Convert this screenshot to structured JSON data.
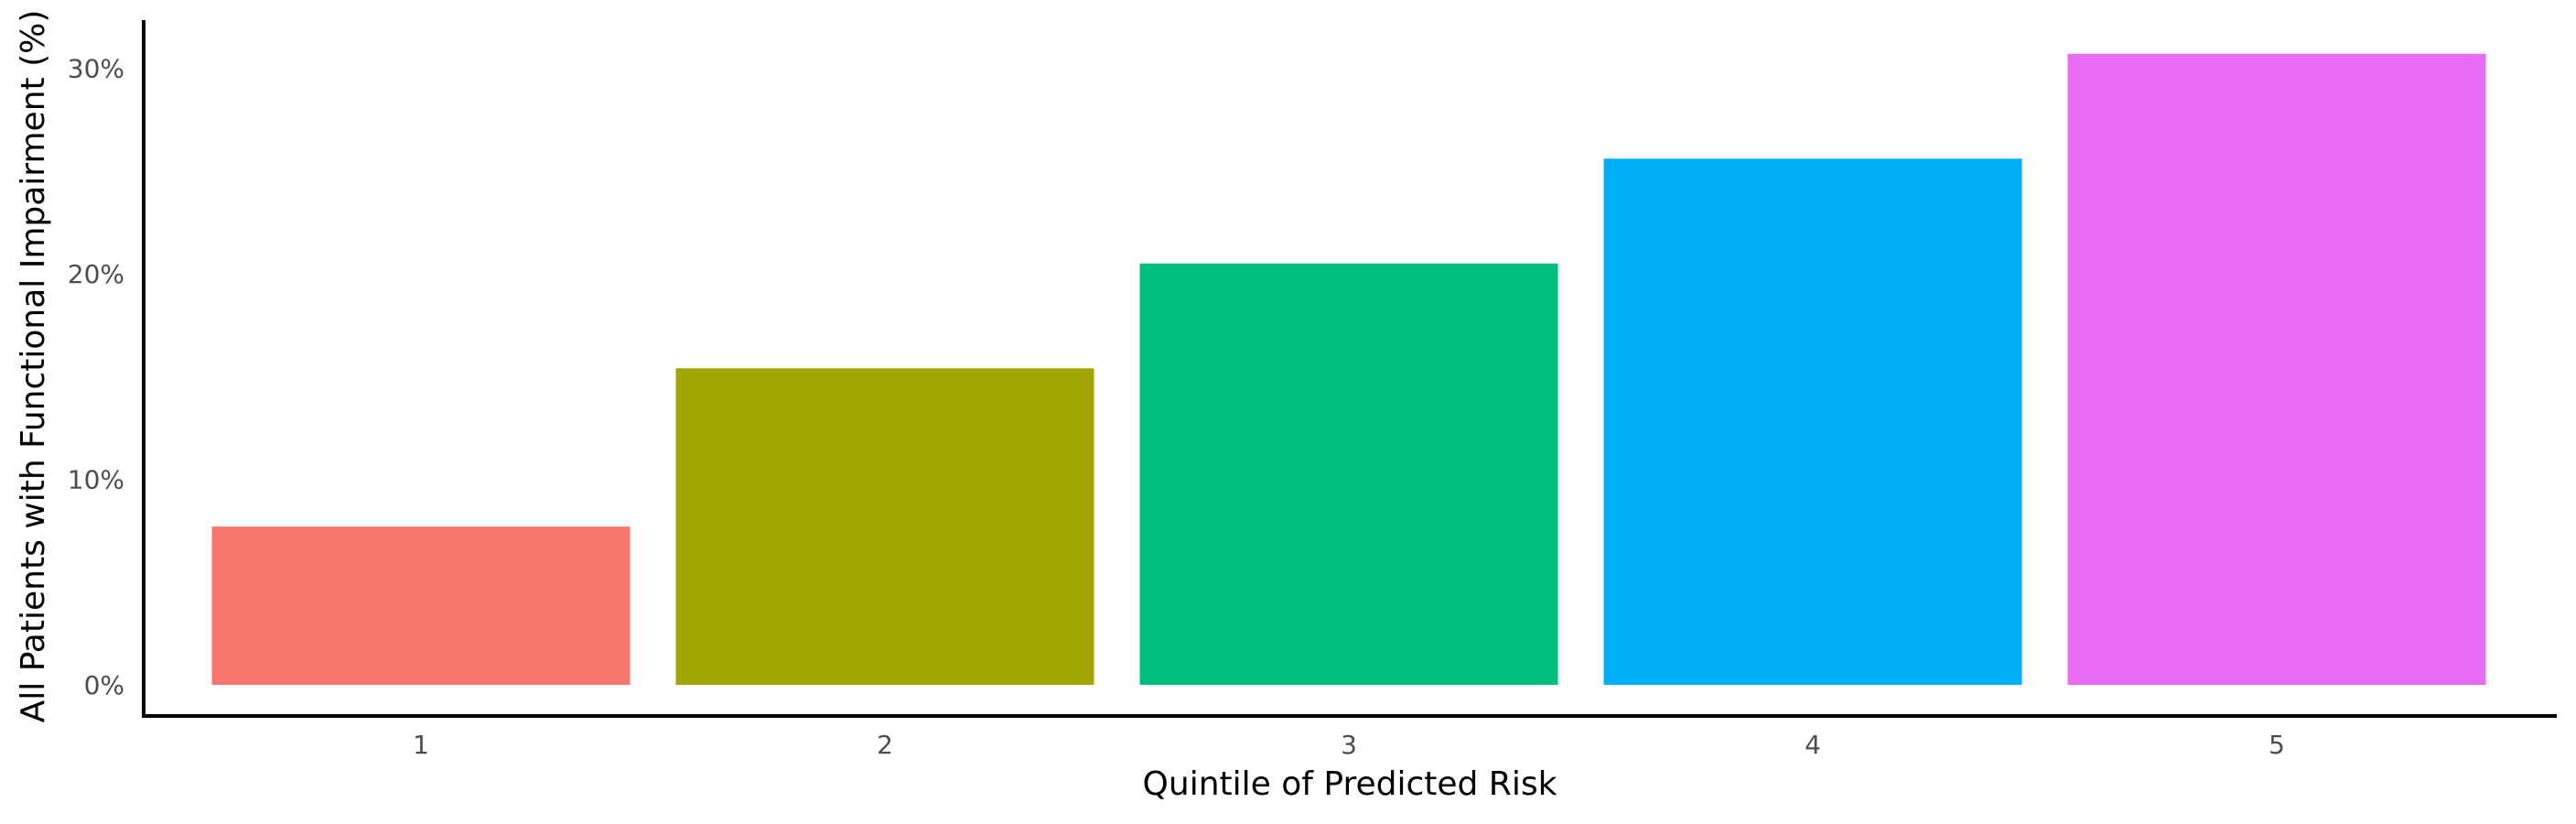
{
  "chart_data": {
    "type": "bar",
    "categories": [
      "1",
      "2",
      "3",
      "4",
      "5"
    ],
    "values": [
      7.7,
      15.4,
      20.5,
      25.6,
      30.7
    ],
    "colors": [
      "#F8766D",
      "#A3A500",
      "#00BF7D",
      "#00B0F6",
      "#E76BF3"
    ],
    "xlabel": "Quintile of Predicted Risk",
    "ylabel": "All Patients with Functional Impairment (%)",
    "ylim": [
      0,
      32.2
    ],
    "yticks": [
      0,
      10,
      20,
      30
    ],
    "ytick_labels": [
      "0%",
      "10%",
      "20%",
      "30%"
    ],
    "grid": false,
    "legend": false
  }
}
